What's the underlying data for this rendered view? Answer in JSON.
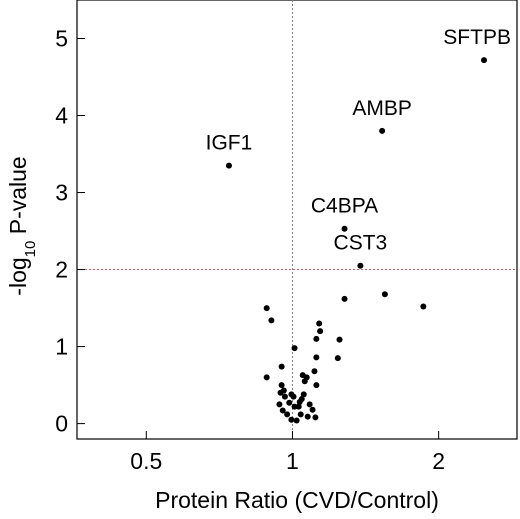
{
  "chart_data": {
    "type": "scatter",
    "title": "",
    "xlabel": "Protein Ratio (CVD/Control)",
    "ylabel": {
      "prefix": "-log",
      "subscript": "10",
      "suffix": " P-value"
    },
    "x_scale": "log2",
    "xlim": [
      0.36,
      2.9
    ],
    "ylim": [
      -0.2,
      5.5
    ],
    "x_ticks": [
      {
        "value": 0.5,
        "label": "0.5"
      },
      {
        "value": 1,
        "label": "1"
      },
      {
        "value": 2,
        "label": "2"
      }
    ],
    "y_ticks": [
      {
        "value": 0,
        "label": "0"
      },
      {
        "value": 1,
        "label": "1"
      },
      {
        "value": 2,
        "label": "2"
      },
      {
        "value": 3,
        "label": "3"
      },
      {
        "value": 4,
        "label": "4"
      },
      {
        "value": 5,
        "label": "5"
      }
    ],
    "grid": false,
    "reference_lines": [
      {
        "axis": "x",
        "value": 1,
        "style": "dotted",
        "color": "#808080"
      },
      {
        "axis": "y",
        "value": 2,
        "style": "dotted",
        "color": "#d65b5b"
      }
    ],
    "labeled_points": [
      {
        "label": "SFTPB",
        "x": 2.48,
        "y": 4.72
      },
      {
        "label": "AMBP",
        "x": 1.53,
        "y": 3.8
      },
      {
        "label": "IGF1",
        "x": 0.74,
        "y": 3.35
      },
      {
        "label": "C4BPA",
        "x": 1.28,
        "y": 2.53
      },
      {
        "label": "CST3",
        "x": 1.38,
        "y": 2.05
      }
    ],
    "points": [
      {
        "x": 0.885,
        "y": 1.5
      },
      {
        "x": 0.905,
        "y": 1.34
      },
      {
        "x": 0.885,
        "y": 0.6
      },
      {
        "x": 0.95,
        "y": 0.74
      },
      {
        "x": 0.95,
        "y": 0.5
      },
      {
        "x": 0.945,
        "y": 0.4
      },
      {
        "x": 0.96,
        "y": 0.43
      },
      {
        "x": 0.965,
        "y": 0.35
      },
      {
        "x": 0.94,
        "y": 0.25
      },
      {
        "x": 0.955,
        "y": 0.17
      },
      {
        "x": 0.985,
        "y": 0.27
      },
      {
        "x": 0.975,
        "y": 0.12
      },
      {
        "x": 0.995,
        "y": 0.38
      },
      {
        "x": 1.005,
        "y": 0.35
      },
      {
        "x": 1.01,
        "y": 0.22
      },
      {
        "x": 0.995,
        "y": 0.05
      },
      {
        "x": 1.02,
        "y": 0.04
      },
      {
        "x": 1.03,
        "y": 0.22
      },
      {
        "x": 1.035,
        "y": 0.28
      },
      {
        "x": 1.04,
        "y": 0.12
      },
      {
        "x": 1.045,
        "y": 0.32
      },
      {
        "x": 1.055,
        "y": 0.38
      },
      {
        "x": 1.06,
        "y": 0.55
      },
      {
        "x": 1.05,
        "y": 0.63
      },
      {
        "x": 1.07,
        "y": 0.6
      },
      {
        "x": 1.01,
        "y": 0.98
      },
      {
        "x": 1.085,
        "y": 0.25
      },
      {
        "x": 1.1,
        "y": 0.18
      },
      {
        "x": 1.115,
        "y": 0.08
      },
      {
        "x": 1.075,
        "y": 0.09
      },
      {
        "x": 1.12,
        "y": 0.5
      },
      {
        "x": 1.11,
        "y": 0.68
      },
      {
        "x": 1.12,
        "y": 0.86
      },
      {
        "x": 1.12,
        "y": 1.1
      },
      {
        "x": 1.14,
        "y": 1.2
      },
      {
        "x": 1.135,
        "y": 1.3
      },
      {
        "x": 1.24,
        "y": 0.85
      },
      {
        "x": 1.25,
        "y": 1.09
      },
      {
        "x": 1.28,
        "y": 1.62
      },
      {
        "x": 1.55,
        "y": 1.68
      },
      {
        "x": 1.86,
        "y": 1.52
      }
    ]
  }
}
